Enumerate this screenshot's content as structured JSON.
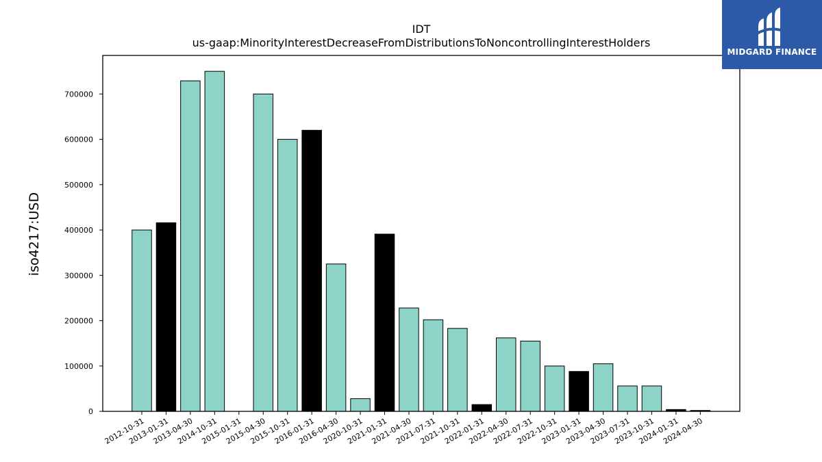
{
  "chart_data": {
    "type": "bar",
    "title": "IDT",
    "subtitle": "us-gaap:MinorityInterestDecreaseFromDistributionsToNoncontrollingInterestHolders",
    "xlabel": "",
    "ylabel": "iso4217:USD",
    "ylim": [
      0,
      785000
    ],
    "yticks": [
      0,
      100000,
      200000,
      300000,
      400000,
      500000,
      600000,
      700000
    ],
    "categories": [
      "2012-10-31",
      "2013-01-31",
      "2013-04-30",
      "2014-10-31",
      "2015-01-31",
      "2015-04-30",
      "2015-10-31",
      "2016-01-31",
      "2016-04-30",
      "2020-10-31",
      "2021-01-31",
      "2021-04-30",
      "2021-07-31",
      "2021-10-31",
      "2022-01-31",
      "2022-04-30",
      "2022-07-31",
      "2022-10-31",
      "2023-01-31",
      "2023-04-30",
      "2023-07-31",
      "2023-10-31",
      "2024-01-31",
      "2024-04-30"
    ],
    "values": [
      400000,
      416000,
      729000,
      750000,
      0,
      700000,
      600000,
      620000,
      325000,
      28000,
      391000,
      228000,
      202000,
      183000,
      15000,
      162000,
      155000,
      100000,
      88000,
      105000,
      56000,
      56000,
      4000,
      2000
    ],
    "bar_colors": [
      "#8dd3c7",
      "#000000",
      "#8dd3c7",
      "#8dd3c7",
      "#8dd3c7",
      "#8dd3c7",
      "#8dd3c7",
      "#000000",
      "#8dd3c7",
      "#8dd3c7",
      "#000000",
      "#8dd3c7",
      "#8dd3c7",
      "#8dd3c7",
      "#000000",
      "#8dd3c7",
      "#8dd3c7",
      "#8dd3c7",
      "#000000",
      "#8dd3c7",
      "#8dd3c7",
      "#8dd3c7",
      "#000000",
      "#000000"
    ],
    "grid": false,
    "legend": "none"
  },
  "logo": {
    "text": "MIDGARD FINANCE",
    "background": "#2c5aa8"
  }
}
